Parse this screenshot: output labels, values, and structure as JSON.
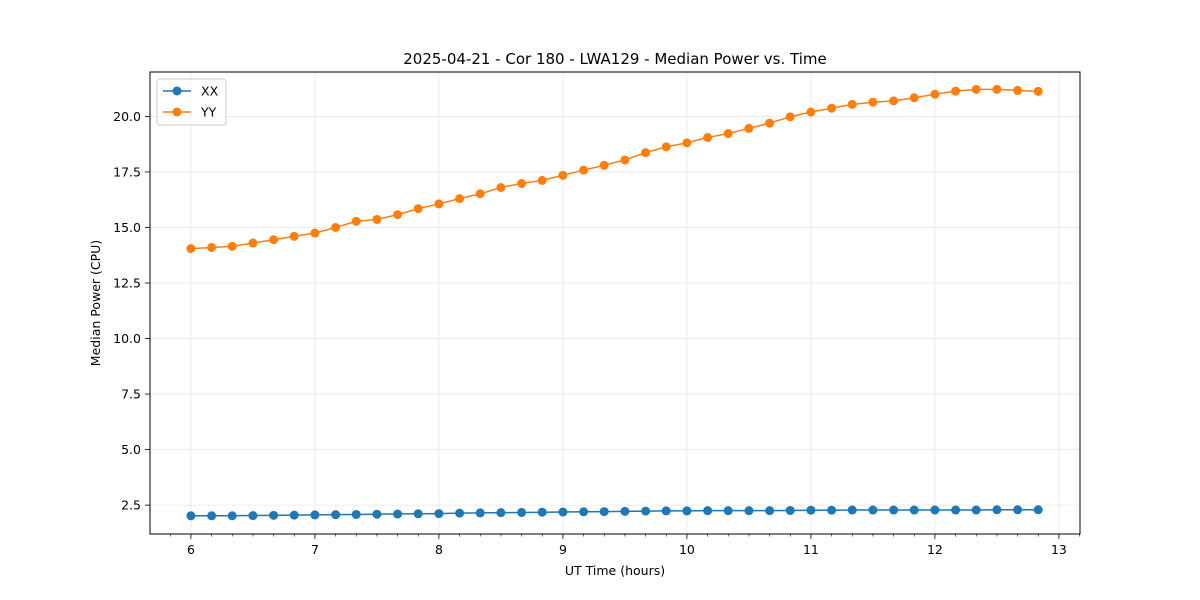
{
  "chart_data": {
    "type": "line",
    "title": "2025-04-21 - Cor 180 - LWA129 - Median Power vs. Time",
    "xlabel": "UT Time (hours)",
    "ylabel": "Median Power (CPU)",
    "xlim": [
      5.67,
      13.17
    ],
    "ylim": [
      1.2,
      22.0
    ],
    "xticks": [
      6,
      7,
      8,
      9,
      10,
      11,
      12,
      13
    ],
    "xtick_labels": [
      "6",
      "7",
      "8",
      "9",
      "10",
      "11",
      "12",
      "13"
    ],
    "yticks": [
      2.5,
      5.0,
      7.5,
      10.0,
      12.5,
      15.0,
      17.5,
      20.0
    ],
    "ytick_labels": [
      "2.5",
      "5.0",
      "7.5",
      "10.0",
      "12.5",
      "15.0",
      "17.5",
      "20.0"
    ],
    "grid": true,
    "legend_position": "top-left",
    "x": [
      6.0,
      6.167,
      6.333,
      6.5,
      6.667,
      6.833,
      7.0,
      7.167,
      7.333,
      7.5,
      7.667,
      7.833,
      8.0,
      8.167,
      8.333,
      8.5,
      8.667,
      8.833,
      9.0,
      9.167,
      9.333,
      9.5,
      9.667,
      9.833,
      10.0,
      10.167,
      10.333,
      10.5,
      10.667,
      10.833,
      11.0,
      11.167,
      11.333,
      11.5,
      11.667,
      11.833,
      12.0,
      12.167,
      12.333,
      12.5,
      12.667,
      12.833
    ],
    "series": [
      {
        "name": "XX",
        "color": "#1f77b4",
        "values": [
          2.02,
          2.02,
          2.02,
          2.03,
          2.04,
          2.05,
          2.06,
          2.07,
          2.08,
          2.09,
          2.1,
          2.11,
          2.12,
          2.14,
          2.15,
          2.16,
          2.17,
          2.18,
          2.19,
          2.2,
          2.21,
          2.22,
          2.23,
          2.24,
          2.24,
          2.25,
          2.25,
          2.25,
          2.25,
          2.26,
          2.27,
          2.27,
          2.28,
          2.28,
          2.28,
          2.28,
          2.28,
          2.28,
          2.28,
          2.29,
          2.29,
          2.29
        ]
      },
      {
        "name": "YY",
        "color": "#ff7f0e",
        "values": [
          14.05,
          14.1,
          14.15,
          14.3,
          14.45,
          14.6,
          14.75,
          15.0,
          15.28,
          15.36,
          15.58,
          15.85,
          16.06,
          16.3,
          16.52,
          16.8,
          16.98,
          17.12,
          17.35,
          17.58,
          17.8,
          18.04,
          18.37,
          18.63,
          18.81,
          19.05,
          19.23,
          19.46,
          19.7,
          19.98,
          20.2,
          20.37,
          20.54,
          20.64,
          20.7,
          20.84,
          21.0,
          21.14,
          21.22,
          21.22,
          21.17,
          21.13
        ]
      }
    ]
  }
}
